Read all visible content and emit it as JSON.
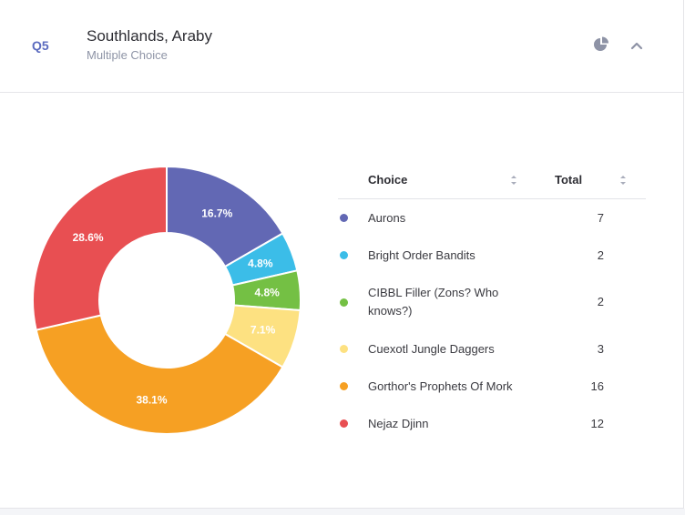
{
  "question": {
    "number": "Q5",
    "title": "Southlands, Araby",
    "type": "Multiple Choice"
  },
  "header_icons": {
    "chart_toggle": "pie-chart-icon",
    "collapse": "chevron-up-icon"
  },
  "table": {
    "col_choice": "Choice",
    "col_total": "Total"
  },
  "chart_data": {
    "type": "pie",
    "donut": true,
    "categories": [
      "Aurons",
      "Bright Order Bandits",
      "CIBBL Filler (Zons? Who knows?)",
      "Cuexotl Jungle Daggers",
      "Gorthor's Prophets Of Mork",
      "Nejaz Djinn"
    ],
    "values": [
      7,
      2,
      2,
      3,
      16,
      12
    ],
    "labels": [
      "16.7%",
      "4.8%",
      "4.8%",
      "7.1%",
      "38.1%",
      "28.6%"
    ],
    "colors": [
      "#6268b4",
      "#3bbde8",
      "#74c044",
      "#fde181",
      "#f6a023",
      "#e84f52"
    ],
    "legend_placement": "right"
  }
}
